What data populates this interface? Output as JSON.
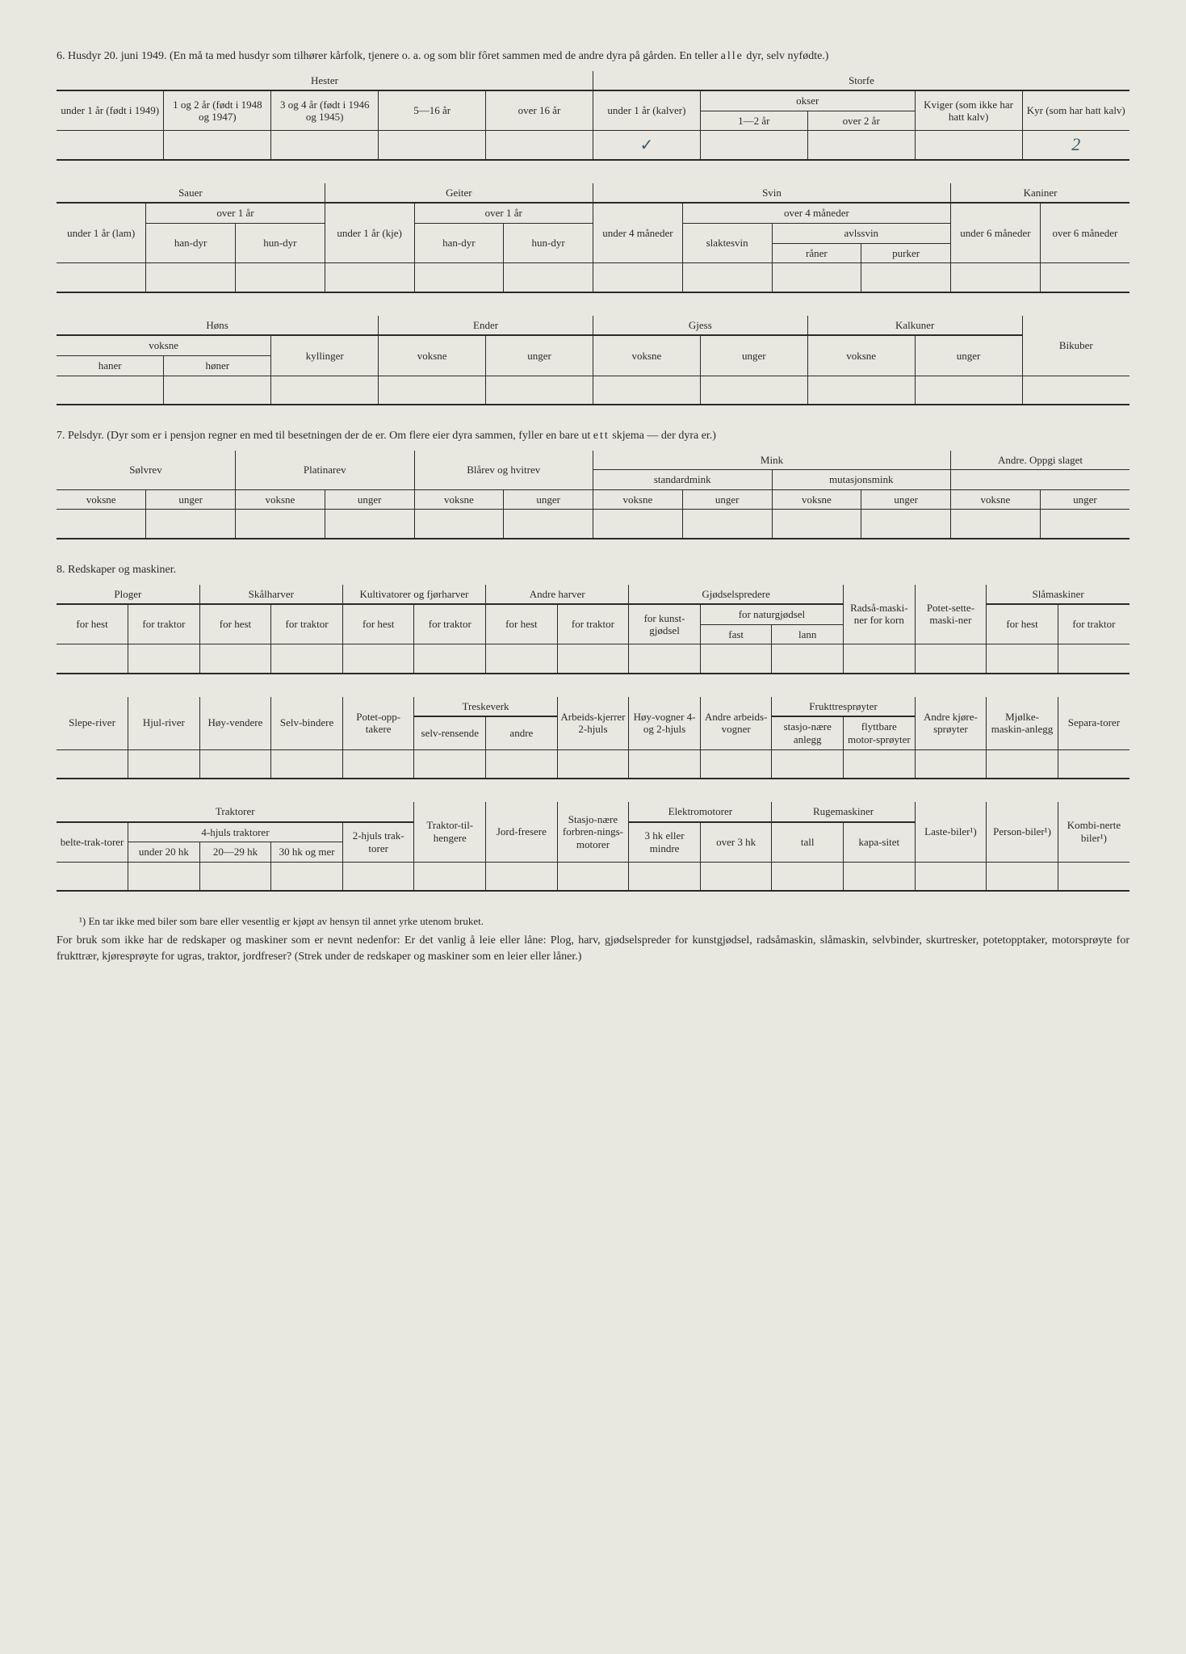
{
  "section6": {
    "num": "6.",
    "title": "Husdyr 20. juni 1949.  (En må ta med husdyr som tilhører kårfolk, tjenere o. a. og som blir fôret sammen med de andre dyra på gården.  En teller ",
    "title_spaced": "alle",
    "title_end": " dyr, selv nyfødte.)"
  },
  "table6a": {
    "hester": "Hester",
    "storfe": "Storfe",
    "h_u1": "under 1 år (født i 1949)",
    "h_1_2": "1 og 2 år (født i 1948 og 1947)",
    "h_3_4": "3 og 4 år (født i 1946 og 1945)",
    "h_5_16": "5—16 år",
    "h_o16": "over 16 år",
    "s_u1": "under 1 år (kalver)",
    "s_okser": "okser",
    "s_1_2": "1—2 år",
    "s_o2": "over 2 år",
    "s_kviger": "Kviger (som ikke har hatt kalv)",
    "s_kyr": "Kyr (som har hatt kalv)",
    "tick": "✓",
    "kyr_val": "2"
  },
  "table6b": {
    "sauer": "Sauer",
    "geiter": "Geiter",
    "svin": "Svin",
    "kaniner": "Kaniner",
    "sau_u1": "under 1 år (lam)",
    "sau_o1": "over 1 år",
    "handyr": "han-dyr",
    "hundyr": "hun-dyr",
    "geit_u1": "under 1 år (kje)",
    "geit_o1": "over 1 år",
    "svin_u4": "under 4 måneder",
    "svin_o4": "over 4 måneder",
    "slaktesvin": "slaktesvin",
    "avlssvin": "avlssvin",
    "raner": "råner",
    "purker": "purker",
    "kan_u6": "under 6 måneder",
    "kan_o6": "over 6 måneder"
  },
  "table6c": {
    "hons": "Høns",
    "ender": "Ender",
    "gjess": "Gjess",
    "kalkuner": "Kalkuner",
    "bikuber": "Bikuber",
    "voksne": "voksne",
    "haner": "haner",
    "honer": "høner",
    "kyllinger": "kyllinger",
    "unger": "unger"
  },
  "section7": {
    "num": "7.",
    "title": "Pelsdyr.  (Dyr som er i pensjon regner en med til besetningen der de er.  Om flere eier dyra sammen, fyller en bare ut ",
    "title_spaced": "ett",
    "title_end": " skjema — der dyra er.)"
  },
  "table7": {
    "solvrev": "Sølvrev",
    "platinarev": "Platinarev",
    "blarev": "Blårev og hvitrev",
    "mink": "Mink",
    "standardmink": "standardmink",
    "mutasjonsmink": "mutasjonsmink",
    "andre": "Andre. Oppgi slaget",
    "voksne": "voksne",
    "unger": "unger"
  },
  "section8": {
    "num": "8.",
    "title": "Redskaper og maskiner."
  },
  "table8a": {
    "ploger": "Ploger",
    "skalharver": "Skålharver",
    "kultivatorer": "Kultivatorer og fjørharver",
    "andreharver": "Andre harver",
    "gjodselspredere": "Gjødselspredere",
    "radsa": "Radså-maski-ner for korn",
    "potet": "Potet-sette-maski-ner",
    "slamaskiner": "Slåmaskiner",
    "forhest": "for hest",
    "fortraktor": "for traktor",
    "forkunst": "for kunst-gjødsel",
    "fornatur": "for naturgjødsel",
    "fast": "fast",
    "lann": "lann"
  },
  "table8b": {
    "sleperiver": "Slepe-river",
    "hjulriver": "Hjul-river",
    "hoyvendere": "Høy-vendere",
    "selvbindere": "Selv-bindere",
    "potetopp": "Potet-opp-takere",
    "treskeverk": "Treskeverk",
    "selvrensende": "selv-rensende",
    "andre": "andre",
    "arbeidskjerrer": "Arbeids-kjerrer 2-hjuls",
    "hoyvogner": "Høy-vogner 4- og 2-hjuls",
    "andrearbeids": "Andre arbeids-vogner",
    "fruktspr": "Frukttresprøyter",
    "stasjonaere": "stasjo-nære anlegg",
    "flyttbare": "flyttbare motor-sprøyter",
    "andrekjore": "Andre kjøre-sprøyter",
    "mjolke": "Mjølke-maskin-anlegg",
    "separatorer": "Separa-torer"
  },
  "table8c": {
    "traktorer": "Traktorer",
    "belte": "belte-trak-torer",
    "fourhjuls": "4-hjuls traktorer",
    "under20": "under 20 hk",
    "h20_29": "20—29 hk",
    "h30mer": "30 hk og mer",
    "twohjuls": "2-hjuls trak-torer",
    "traktortil": "Traktor-til-hengere",
    "jordfresere": "Jord-fresere",
    "stasjonaere": "Stasjo-nære forbren-nings-motorer",
    "elektro": "Elektromotorer",
    "h3eller": "3 hk eller mindre",
    "over3": "over 3 hk",
    "ruge": "Rugemaskiner",
    "tall": "tall",
    "kapasitet": "kapa-sitet",
    "lastebiler": "Laste-biler¹)",
    "personbiler": "Person-biler¹)",
    "kombinerte": "Kombi-nerte biler¹)"
  },
  "footnote": "¹) En tar ikke med biler som bare eller vesentlig er kjøpt av hensyn til annet yrke utenom bruket.",
  "bodytext": "For bruk som ikke har de redskaper og maskiner som er nevnt nedenfor: Er det vanlig å leie eller låne: Plog, harv, gjødselspreder for kunstgjødsel, radsåmaskin, slåmaskin, selvbinder, skurtresker, potetopptaker, motorsprøyte for frukttrær, kjøresprøyte for ugras, traktor, jordfreser? (Strek under de redskaper og maskiner som en leier eller låner.)"
}
